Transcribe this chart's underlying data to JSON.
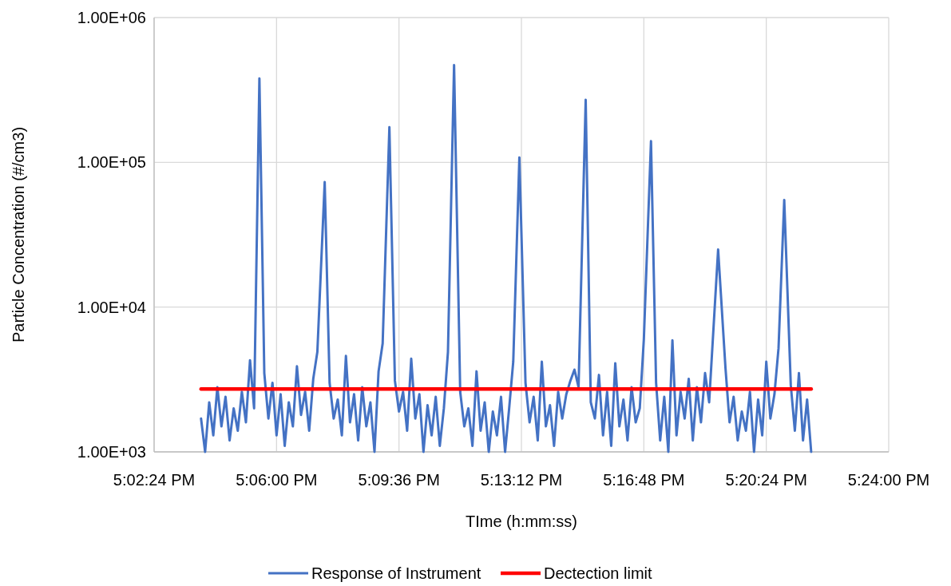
{
  "chart_data": {
    "type": "line",
    "xlabel": "TIme (h:mm:ss)",
    "ylabel": "Particle Concentration (#/cm3)",
    "log": "y",
    "grid": true,
    "legend": "bottom",
    "marker": "none",
    "line_style": "solid",
    "xlim": [
      17.04,
      17.4
    ],
    "xticks": [
      {
        "value": 17.04,
        "label": "5:02:24 PM"
      },
      {
        "value": 17.1,
        "label": "5:06:00 PM"
      },
      {
        "value": 17.16,
        "label": "5:09:36 PM"
      },
      {
        "value": 17.22,
        "label": "5:13:12 PM"
      },
      {
        "value": 17.28,
        "label": "5:16:48 PM"
      },
      {
        "value": 17.34,
        "label": "5:20:24 PM"
      },
      {
        "value": 17.4,
        "label": "5:24:00 PM"
      }
    ],
    "ylim": [
      1000,
      1000000
    ],
    "yticks": [
      {
        "value": 1000,
        "label": "1.00E+03"
      },
      {
        "value": 10000,
        "label": "1.00E+04"
      },
      {
        "value": 100000,
        "label": "1.00E+05"
      },
      {
        "value": 1000000,
        "label": "1.00E+06"
      }
    ],
    "series": [
      {
        "name": "Response of Instrument",
        "color": "#4472c4",
        "x": [
          17.063,
          17.065,
          17.067,
          17.069,
          17.071,
          17.073,
          17.075,
          17.077,
          17.079,
          17.081,
          17.083,
          17.085,
          17.087,
          17.089,
          17.0916,
          17.094,
          17.096,
          17.098,
          17.1,
          17.102,
          17.104,
          17.106,
          17.108,
          17.11,
          17.112,
          17.114,
          17.116,
          17.118,
          17.12,
          17.1236,
          17.126,
          17.128,
          17.13,
          17.132,
          17.134,
          17.136,
          17.138,
          17.14,
          17.142,
          17.144,
          17.146,
          17.148,
          17.15,
          17.152,
          17.1553,
          17.158,
          17.16,
          17.162,
          17.164,
          17.166,
          17.168,
          17.17,
          17.172,
          17.174,
          17.176,
          17.178,
          17.18,
          17.182,
          17.184,
          17.187,
          17.19,
          17.192,
          17.194,
          17.196,
          17.198,
          17.2,
          17.202,
          17.204,
          17.206,
          17.208,
          17.21,
          17.212,
          17.214,
          17.216,
          17.219,
          17.222,
          17.224,
          17.226,
          17.228,
          17.23,
          17.232,
          17.234,
          17.236,
          17.238,
          17.24,
          17.242,
          17.244,
          17.246,
          17.248,
          17.2515,
          17.254,
          17.256,
          17.258,
          17.26,
          17.262,
          17.264,
          17.266,
          17.268,
          17.27,
          17.272,
          17.274,
          17.276,
          17.278,
          17.28,
          17.2835,
          17.286,
          17.288,
          17.29,
          17.292,
          17.294,
          17.296,
          17.298,
          17.3,
          17.302,
          17.304,
          17.306,
          17.308,
          17.31,
          17.312,
          17.3164,
          17.32,
          17.322,
          17.324,
          17.326,
          17.328,
          17.33,
          17.332,
          17.334,
          17.336,
          17.338,
          17.34,
          17.342,
          17.344,
          17.346,
          17.3488,
          17.352,
          17.354,
          17.356,
          17.358,
          17.36,
          17.362
        ],
        "values": [
          1700,
          1000,
          2200,
          1300,
          2800,
          1500,
          2400,
          1200,
          2000,
          1400,
          2600,
          1600,
          4300,
          2000,
          380000,
          3500,
          1700,
          3000,
          1300,
          2500,
          1100,
          2200,
          1500,
          3900,
          1800,
          2600,
          1400,
          3200,
          4900,
          73000,
          3000,
          1700,
          2300,
          1300,
          4600,
          1600,
          2500,
          1200,
          2800,
          1500,
          2200,
          1000,
          3600,
          5600,
          175000,
          3100,
          1900,
          2600,
          1400,
          4400,
          1700,
          2500,
          1000,
          2100,
          1300,
          2400,
          1100,
          2000,
          4900,
          470000,
          2600,
          1500,
          2000,
          1100,
          3600,
          1400,
          2200,
          1000,
          1900,
          1300,
          2400,
          1000,
          2000,
          4200,
          108000,
          3000,
          1600,
          2400,
          1200,
          4200,
          1500,
          2100,
          1100,
          2600,
          1700,
          2500,
          3100,
          3700,
          2800,
          270000,
          2200,
          1700,
          3400,
          1300,
          2600,
          1100,
          4100,
          1500,
          2300,
          1200,
          2800,
          1600,
          2000,
          6000,
          140000,
          3000,
          1200,
          2400,
          1000,
          5900,
          1300,
          2600,
          1700,
          3200,
          1200,
          2800,
          1600,
          3500,
          2200,
          25000,
          3800,
          1600,
          2400,
          1200,
          1900,
          1400,
          2600,
          1000,
          2300,
          1300,
          4200,
          1700,
          2500,
          5200,
          55000,
          2900,
          1400,
          3500,
          1200,
          2300,
          1000
        ]
      },
      {
        "name": "Dectection limit",
        "color": "#ff0000",
        "x": [
          17.063,
          17.362
        ],
        "values": [
          2720,
          2720
        ]
      }
    ]
  }
}
